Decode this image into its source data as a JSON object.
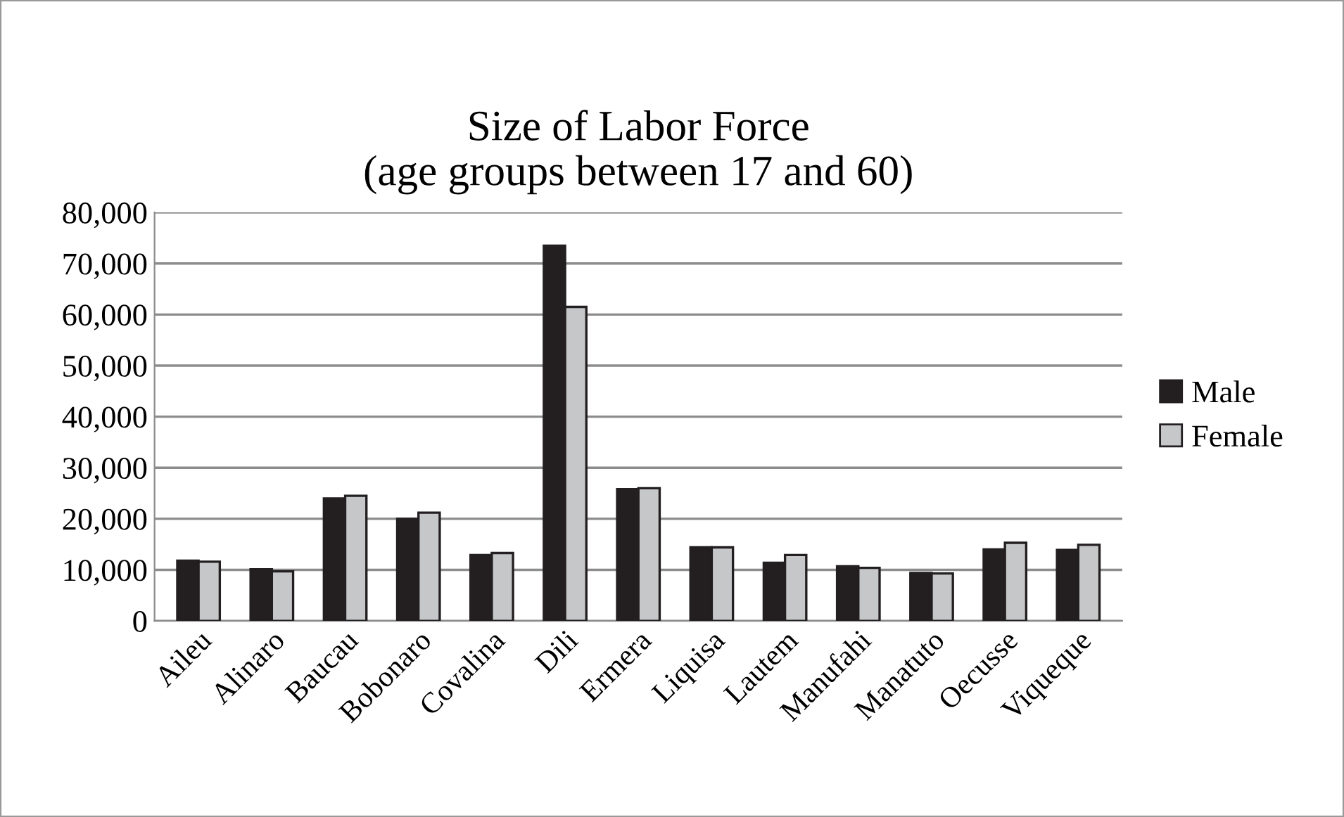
{
  "chart_data": {
    "type": "bar",
    "title": "Size of Labor Force\n(age groups between 17 and 60)",
    "categories": [
      "Aileu",
      "Alinaro",
      "Baucau",
      "Bobonaro",
      "Covalina",
      "Dili",
      "Ermera",
      "Liquisa",
      "Lautem",
      "Manufahi",
      "Manatuto",
      "Oecusse",
      "Viqueque"
    ],
    "series": [
      {
        "name": "Male",
        "color": "#231f20",
        "values": [
          11800,
          10100,
          24000,
          20000,
          12900,
          73500,
          25800,
          14400,
          11400,
          10700,
          9400,
          14000,
          13900
        ]
      },
      {
        "name": "Female",
        "color": "#c6c7c8",
        "values": [
          11600,
          9700,
          24500,
          21200,
          13300,
          61500,
          26000,
          14400,
          12900,
          10400,
          9300,
          15300,
          14900
        ]
      }
    ],
    "ylim": [
      0,
      80000
    ],
    "yticks": [
      {
        "value": 0,
        "label": "0"
      },
      {
        "value": 10000,
        "label": "10,000"
      },
      {
        "value": 20000,
        "label": "20,000"
      },
      {
        "value": 30000,
        "label": "30,000"
      },
      {
        "value": 40000,
        "label": "40,000"
      },
      {
        "value": 50000,
        "label": "50,000"
      },
      {
        "value": 60000,
        "label": "60,000"
      },
      {
        "value": 70000,
        "label": "70,000"
      },
      {
        "value": 80000,
        "label": "80,000"
      }
    ],
    "grid": "y",
    "legend": "right"
  }
}
